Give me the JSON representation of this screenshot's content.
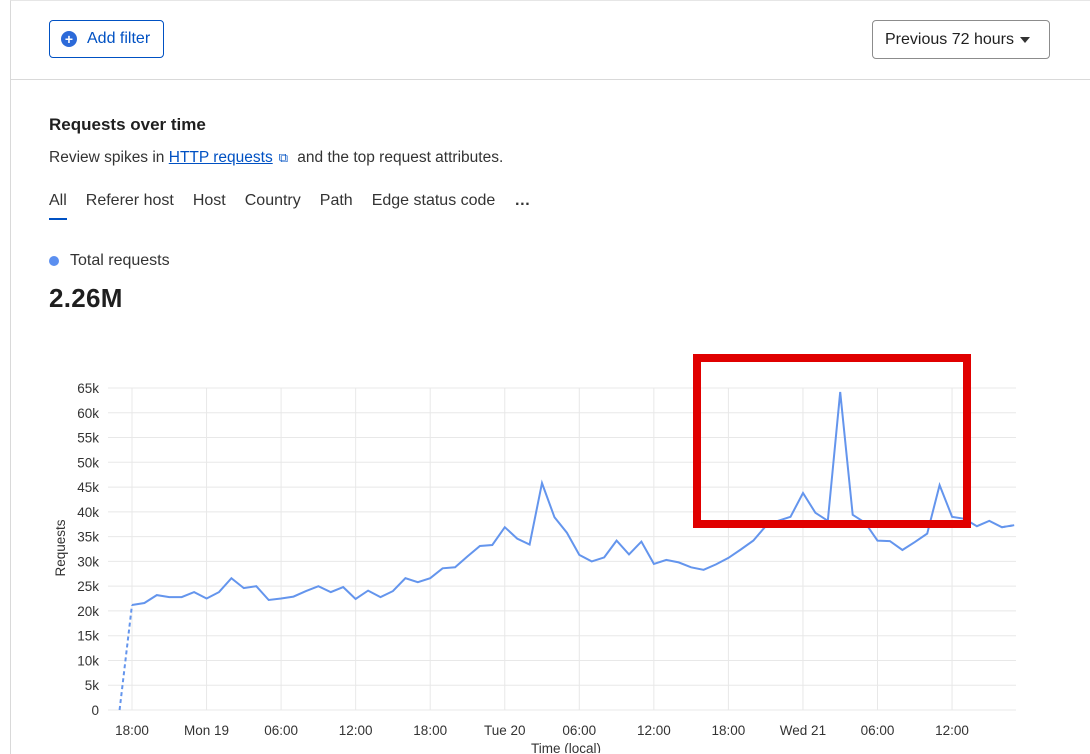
{
  "toolbar": {
    "add_filter_label": "Add filter",
    "time_range_label": "Previous 72 hours"
  },
  "section": {
    "title": "Requests over time",
    "desc_prefix": "Review spikes in ",
    "desc_link": "HTTP requests",
    "desc_suffix": " and the top request attributes."
  },
  "tabs": [
    "All",
    "Referer host",
    "Host",
    "Country",
    "Path",
    "Edge status code",
    "…"
  ],
  "legend": {
    "label": "Total requests",
    "color": "#5b8ff0"
  },
  "total": "2.26M",
  "colors": {
    "accent": "#0051c3",
    "line": "#6495ed",
    "highlight": "#e00000"
  },
  "chart_data": {
    "type": "line",
    "ylabel": "Requests",
    "xlabel": "Time (local)",
    "ylim": [
      0,
      65000
    ],
    "y_ticks": [
      "0",
      "5k",
      "10k",
      "15k",
      "20k",
      "25k",
      "30k",
      "35k",
      "40k",
      "45k",
      "50k",
      "55k",
      "60k",
      "65k"
    ],
    "x_ticks": [
      "18:00",
      "Mon 19",
      "06:00",
      "12:00",
      "18:00",
      "Tue 20",
      "06:00",
      "12:00",
      "18:00",
      "Wed 21",
      "06:00",
      "12:00"
    ],
    "x_tick_hours": [
      0,
      6,
      12,
      18,
      24,
      30,
      36,
      42,
      48,
      54,
      60,
      66
    ],
    "series": [
      {
        "name": "Total requests",
        "dashed_segments": [
          [
            0,
            1
          ],
          [
            71,
            72
          ]
        ],
        "points": [
          [
            -1,
            0
          ],
          [
            0,
            21200
          ],
          [
            1,
            21600
          ],
          [
            2,
            23200
          ],
          [
            3,
            22800
          ],
          [
            4,
            22800
          ],
          [
            5,
            23800
          ],
          [
            6,
            22500
          ],
          [
            7,
            23800
          ],
          [
            8,
            26600
          ],
          [
            9,
            24600
          ],
          [
            10,
            25000
          ],
          [
            11,
            22200
          ],
          [
            12,
            22500
          ],
          [
            13,
            22900
          ],
          [
            14,
            24000
          ],
          [
            15,
            25000
          ],
          [
            16,
            23800
          ],
          [
            17,
            24800
          ],
          [
            18,
            22400
          ],
          [
            19,
            24100
          ],
          [
            20,
            22800
          ],
          [
            21,
            24000
          ],
          [
            22,
            26600
          ],
          [
            23,
            25800
          ],
          [
            24,
            26600
          ],
          [
            25,
            28600
          ],
          [
            26,
            28800
          ],
          [
            27,
            31000
          ],
          [
            28,
            33100
          ],
          [
            29,
            33300
          ],
          [
            30,
            36900
          ],
          [
            31,
            34600
          ],
          [
            32,
            33400
          ],
          [
            33,
            45800
          ],
          [
            34,
            38900
          ],
          [
            35,
            35800
          ],
          [
            36,
            31300
          ],
          [
            37,
            30000
          ],
          [
            38,
            30800
          ],
          [
            39,
            34200
          ],
          [
            40,
            31400
          ],
          [
            41,
            34000
          ],
          [
            42,
            29500
          ],
          [
            43,
            30300
          ],
          [
            44,
            29800
          ],
          [
            45,
            28800
          ],
          [
            46,
            28300
          ],
          [
            47,
            29400
          ],
          [
            48,
            30700
          ],
          [
            49,
            32400
          ],
          [
            50,
            34200
          ],
          [
            51,
            37100
          ],
          [
            52,
            38200
          ],
          [
            53,
            39000
          ],
          [
            54,
            43800
          ],
          [
            55,
            39800
          ],
          [
            56,
            38200
          ],
          [
            57,
            64200
          ],
          [
            58,
            39400
          ],
          [
            59,
            37800
          ],
          [
            60,
            34200
          ],
          [
            61,
            34100
          ],
          [
            62,
            32300
          ],
          [
            63,
            33900
          ],
          [
            64,
            35600
          ],
          [
            65,
            45400
          ],
          [
            66,
            39000
          ],
          [
            67,
            38600
          ],
          [
            68,
            37100
          ],
          [
            69,
            38200
          ],
          [
            70,
            36900
          ],
          [
            71,
            37300
          ],
          [
            72,
            37500
          ]
        ]
      }
    ]
  }
}
